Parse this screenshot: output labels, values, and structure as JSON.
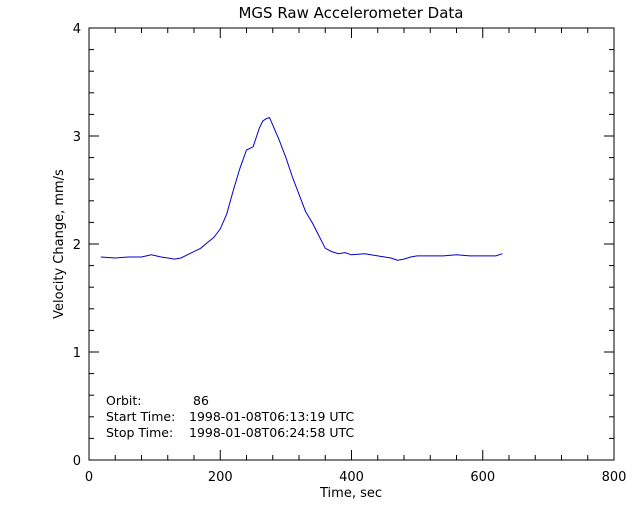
{
  "chart_data": {
    "type": "line",
    "title": "MGS Raw Accelerometer Data",
    "xlabel": "Time, sec",
    "ylabel": "Velocity Change, mm/s",
    "xlim": [
      0,
      800
    ],
    "ylim": [
      0,
      4
    ],
    "x_ticks": [
      "0",
      "200",
      "400",
      "600",
      "800"
    ],
    "y_ticks": [
      "0",
      "1",
      "2",
      "3",
      "4"
    ],
    "grid": false,
    "series": [
      {
        "color": "#0000cc",
        "x": [
          18,
          40,
          60,
          80,
          95,
          110,
          120,
          130,
          140,
          150,
          160,
          170,
          180,
          190,
          200,
          210,
          220,
          230,
          240,
          250,
          260,
          265,
          270,
          275,
          280,
          290,
          300,
          310,
          320,
          330,
          340,
          350,
          360,
          370,
          380,
          390,
          400,
          420,
          440,
          460,
          470,
          480,
          490,
          500,
          520,
          540,
          560,
          580,
          600,
          620,
          630
        ],
        "y": [
          1.88,
          1.87,
          1.88,
          1.88,
          1.9,
          1.88,
          1.87,
          1.86,
          1.87,
          1.9,
          1.93,
          1.96,
          2.01,
          2.06,
          2.14,
          2.28,
          2.5,
          2.7,
          2.87,
          2.9,
          3.08,
          3.14,
          3.16,
          3.17,
          3.1,
          2.96,
          2.8,
          2.62,
          2.46,
          2.3,
          2.2,
          2.08,
          1.96,
          1.93,
          1.91,
          1.92,
          1.9,
          1.91,
          1.89,
          1.87,
          1.85,
          1.86,
          1.88,
          1.89,
          1.89,
          1.89,
          1.9,
          1.89,
          1.89,
          1.89,
          1.91
        ]
      }
    ],
    "annotations": [
      {
        "label": "Orbit:",
        "value": "86"
      },
      {
        "label": "Start Time:",
        "value": "1998-01-08T06:13:19 UTC"
      },
      {
        "label": "Stop Time:",
        "value": "1998-01-08T06:24:58 UTC"
      }
    ]
  }
}
